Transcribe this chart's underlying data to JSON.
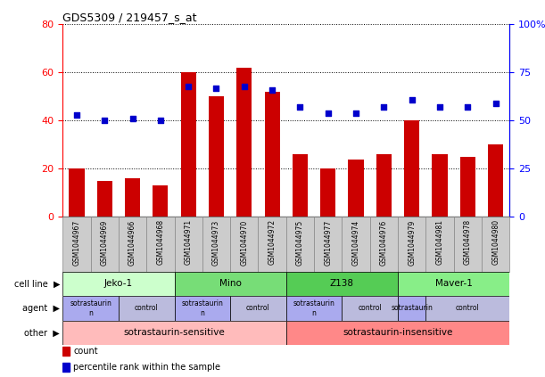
{
  "title": "GDS5309 / 219457_s_at",
  "samples": [
    "GSM1044967",
    "GSM1044969",
    "GSM1044966",
    "GSM1044968",
    "GSM1044971",
    "GSM1044973",
    "GSM1044970",
    "GSM1044972",
    "GSM1044975",
    "GSM1044977",
    "GSM1044974",
    "GSM1044976",
    "GSM1044979",
    "GSM1044981",
    "GSM1044978",
    "GSM1044980"
  ],
  "bar_values": [
    20,
    15,
    16,
    13,
    60,
    50,
    62,
    52,
    26,
    20,
    24,
    26,
    40,
    26,
    25,
    30
  ],
  "dot_values": [
    53,
    50,
    51,
    50,
    68,
    67,
    68,
    66,
    57,
    54,
    54,
    57,
    61,
    57,
    57,
    59
  ],
  "bar_color": "#cc0000",
  "dot_color": "#0000cc",
  "ylim_left": [
    0,
    80
  ],
  "ylim_right": [
    0,
    100
  ],
  "yticks_left": [
    0,
    20,
    40,
    60,
    80
  ],
  "yticks_right": [
    0,
    25,
    50,
    75,
    100
  ],
  "ytick_labels_right": [
    "0",
    "25",
    "50",
    "75",
    "100%"
  ],
  "cell_line_groups": [
    {
      "label": "Jeko-1",
      "start": 0,
      "end": 4,
      "color": "#ccffcc"
    },
    {
      "label": "Mino",
      "start": 4,
      "end": 8,
      "color": "#77dd77"
    },
    {
      "label": "Z138",
      "start": 8,
      "end": 12,
      "color": "#55cc55"
    },
    {
      "label": "Maver-1",
      "start": 12,
      "end": 16,
      "color": "#88ee88"
    }
  ],
  "agent_groups": [
    {
      "label": "sotrastaurin\nn",
      "start": 0,
      "end": 2,
      "color": "#aaaaee"
    },
    {
      "label": "control",
      "start": 2,
      "end": 4,
      "color": "#bbbbdd"
    },
    {
      "label": "sotrastaurin\nn",
      "start": 4,
      "end": 6,
      "color": "#aaaaee"
    },
    {
      "label": "control",
      "start": 6,
      "end": 8,
      "color": "#bbbbdd"
    },
    {
      "label": "sotrastaurin\nn",
      "start": 8,
      "end": 10,
      "color": "#aaaaee"
    },
    {
      "label": "control",
      "start": 10,
      "end": 12,
      "color": "#bbbbdd"
    },
    {
      "label": "sotrastaurin",
      "start": 12,
      "end": 13,
      "color": "#aaaaee"
    },
    {
      "label": "control",
      "start": 13,
      "end": 16,
      "color": "#bbbbdd"
    }
  ],
  "other_groups": [
    {
      "label": "sotrastaurin-sensitive",
      "start": 0,
      "end": 8,
      "color": "#ffbbbb"
    },
    {
      "label": "sotrastaurin-insensitive",
      "start": 8,
      "end": 16,
      "color": "#ff8888"
    }
  ],
  "row_labels": [
    "cell line",
    "agent",
    "other"
  ],
  "legend_count_label": "count",
  "legend_pct_label": "percentile rank within the sample",
  "xtick_bg_color": "#cccccc",
  "xtick_edge_color": "#888888"
}
